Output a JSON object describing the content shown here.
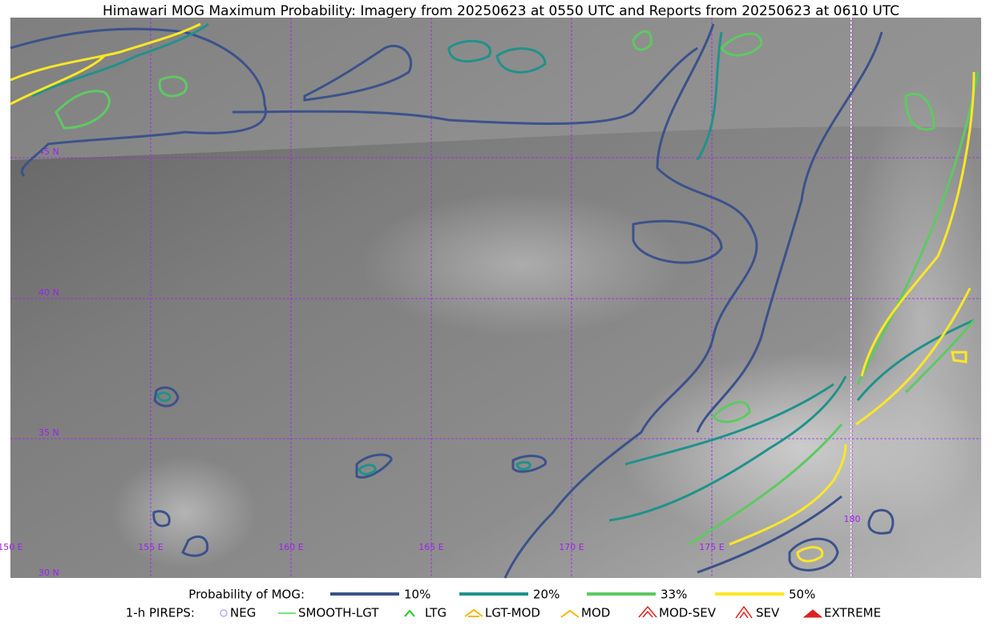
{
  "title": "Himawari MOG Maximum Probability: Imagery from 20250623 at 0550 UTC and Reports from 20250623 at 0610 UTC",
  "grid": {
    "lat_labels": [
      "45 N",
      "40 N",
      "35 N",
      "30 N"
    ],
    "lon_labels": [
      "150 E",
      "155 E",
      "160 E",
      "165 E",
      "170 E",
      "175 E",
      "180"
    ]
  },
  "legend": {
    "probability": {
      "label": "Probability of MOG:",
      "items": [
        "10%",
        "20%",
        "33%",
        "50%"
      ]
    },
    "pireps": {
      "label": "1-h PIREPS:",
      "items": [
        "NEG",
        "SMOOTH-LGT",
        "LTG",
        "LGT-MOD",
        "MOD",
        "MOD-SEV",
        "SEV",
        "EXTREME"
      ]
    }
  }
}
